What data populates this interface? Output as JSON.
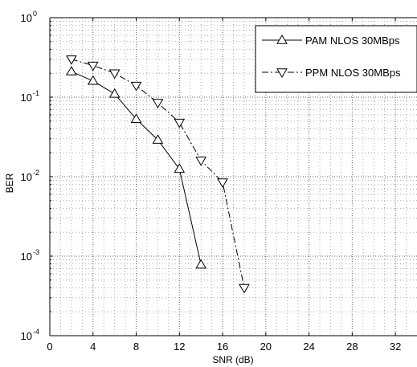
{
  "chart_data": {
    "type": "line",
    "xlabel": "SNR (dB)",
    "ylabel": "BER",
    "xlim": [
      0,
      34
    ],
    "ylim": [
      0.0001,
      1
    ],
    "yscale": "log",
    "grid": true,
    "legend_position": "top-right",
    "x_ticks": [
      {
        "value": 0,
        "label": "0"
      },
      {
        "value": 4,
        "label": "4"
      },
      {
        "value": 8,
        "label": "8"
      },
      {
        "value": 12,
        "label": "12"
      },
      {
        "value": 16,
        "label": "16"
      },
      {
        "value": 20,
        "label": "20"
      },
      {
        "value": 24,
        "label": "24"
      },
      {
        "value": 28,
        "label": "28"
      },
      {
        "value": 32,
        "label": "32"
      }
    ],
    "y_ticks": [
      {
        "value": 1,
        "base": "10",
        "exp": "0"
      },
      {
        "value": 0.1,
        "base": "10",
        "exp": "-1"
      },
      {
        "value": 0.01,
        "base": "10",
        "exp": "-2"
      },
      {
        "value": 0.001,
        "base": "10",
        "exp": "-3"
      },
      {
        "value": 0.0001,
        "base": "10",
        "exp": "-4"
      }
    ],
    "series": [
      {
        "name": "PAM NLOS 30MBps",
        "line_style": "solid",
        "marker": "triangle-up",
        "color": "#000000",
        "x": [
          2,
          4,
          6,
          8,
          10,
          12,
          14
        ],
        "y": [
          0.21,
          0.16,
          0.11,
          0.053,
          0.029,
          0.0125,
          0.00078
        ]
      },
      {
        "name": "PPM NLOS 30MBps",
        "line_style": "dash-dot",
        "marker": "triangle-down",
        "color": "#000000",
        "x": [
          2,
          4,
          6,
          8,
          10,
          12,
          14,
          16,
          18
        ],
        "y": [
          0.3,
          0.25,
          0.2,
          0.14,
          0.085,
          0.048,
          0.016,
          0.0085,
          0.0004
        ]
      }
    ]
  }
}
